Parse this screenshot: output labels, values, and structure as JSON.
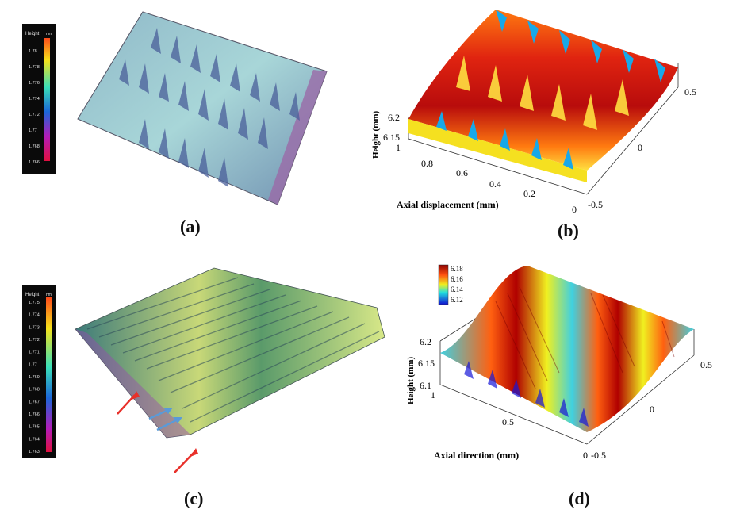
{
  "figure": {
    "panels": [
      {
        "id": "a",
        "caption": "(a)",
        "legend": {
          "title": "Height",
          "unit": "nm",
          "ticks": [
            "1.78",
            "1.778",
            "1.776",
            "1.774",
            "1.772",
            "1.77",
            "1.768",
            "1.766"
          ]
        }
      },
      {
        "id": "b",
        "caption": "(b)",
        "axes": {
          "z_label": "Height (mm)",
          "x_label": "Axial displacement (mm)",
          "z_ticks": [
            "6.2",
            "6.15"
          ],
          "x_ticks": [
            "1",
            "0.8",
            "0.6",
            "0.4",
            "0.2",
            "0"
          ],
          "y_ticks": [
            "0.5",
            "0",
            "-0.5"
          ]
        }
      },
      {
        "id": "c",
        "caption": "(c)",
        "legend": {
          "title": "Height",
          "unit": "nm",
          "ticks": [
            "1.775",
            "1.774",
            "1.773",
            "1.772",
            "1.771",
            "1.77",
            "1.769",
            "1.768",
            "1.767",
            "1.766",
            "1.765",
            "1.764",
            "1.763"
          ]
        }
      },
      {
        "id": "d",
        "caption": "(d)",
        "colorbar": {
          "ticks": [
            "6.18",
            "6.16",
            "6.14",
            "6.12"
          ]
        },
        "axes": {
          "z_label": "Height (mm)",
          "x_label": "Axial direction (mm)",
          "z_ticks": [
            "6.2",
            "6.15",
            "6.1"
          ],
          "x_ticks": [
            "1",
            "0.5",
            "0"
          ],
          "y_ticks": [
            "0.5",
            "0",
            "-0.5"
          ]
        }
      }
    ]
  }
}
